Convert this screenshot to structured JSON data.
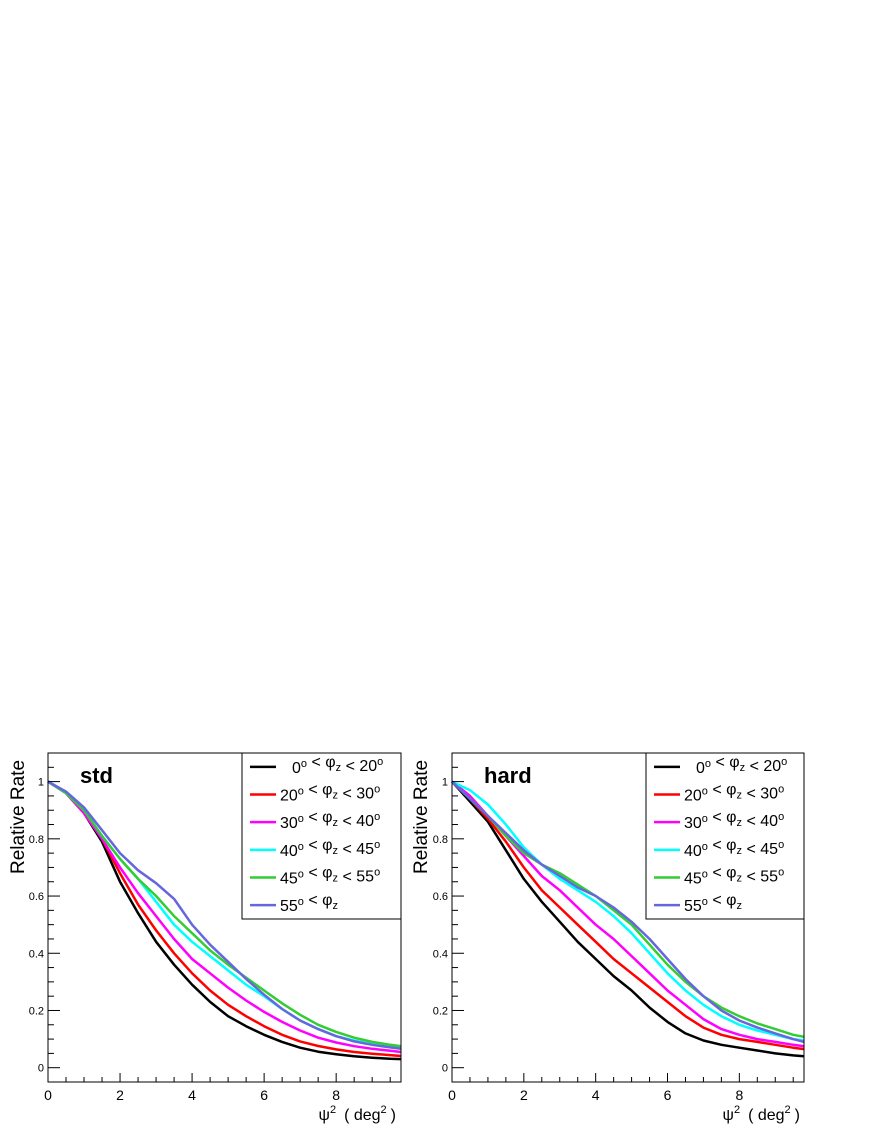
{
  "chart_data": [
    {
      "type": "line",
      "title": "std",
      "ylabel": "Relative Rate",
      "xlabel_base": "ψ",
      "xlabel_sup": "2",
      "xlabel_unit": "( deg",
      "xlabel_unit_sup": "2",
      "xlabel_close": ")",
      "xlim": [
        0,
        9.8
      ],
      "ylim": [
        -0.05,
        1.1
      ],
      "xticks": [
        0,
        2,
        4,
        6,
        8
      ],
      "yticks": [
        0,
        0.2,
        0.4,
        0.6,
        0.8,
        1
      ],
      "ytick_labels": [
        "0",
        "0.2",
        "0.4",
        "0.6",
        "0.8",
        "1"
      ],
      "grid": false,
      "legend_position": "top-right",
      "series": [
        {
          "name": "0° < φz < 20°",
          "color": "#000000",
          "x": [
            0,
            0.5,
            1,
            1.5,
            2,
            2.5,
            3,
            3.5,
            4,
            4.5,
            5,
            5.5,
            6,
            6.5,
            7,
            7.5,
            8,
            8.5,
            9,
            9.5,
            9.8
          ],
          "y": [
            1.0,
            0.96,
            0.89,
            0.79,
            0.65,
            0.54,
            0.44,
            0.36,
            0.29,
            0.23,
            0.18,
            0.145,
            0.115,
            0.09,
            0.07,
            0.056,
            0.047,
            0.04,
            0.035,
            0.031,
            0.03
          ]
        },
        {
          "name": "20° < φz < 30°",
          "color": "#ff0000",
          "x": [
            0,
            0.5,
            1,
            1.5,
            2,
            2.5,
            3,
            3.5,
            4,
            4.5,
            5,
            5.5,
            6,
            6.5,
            7,
            7.5,
            8,
            8.5,
            9,
            9.5,
            9.8
          ],
          "y": [
            1.0,
            0.96,
            0.89,
            0.8,
            0.68,
            0.57,
            0.48,
            0.4,
            0.33,
            0.27,
            0.22,
            0.18,
            0.145,
            0.115,
            0.092,
            0.076,
            0.064,
            0.055,
            0.049,
            0.044,
            0.041
          ]
        },
        {
          "name": "30° < φz < 40°",
          "color": "#ff00ff",
          "x": [
            0,
            0.5,
            1,
            1.5,
            2,
            2.5,
            3,
            3.5,
            4,
            4.5,
            5,
            5.5,
            6,
            6.5,
            7,
            7.5,
            8,
            8.5,
            9,
            9.5,
            9.8
          ],
          "y": [
            1.0,
            0.96,
            0.89,
            0.8,
            0.7,
            0.61,
            0.53,
            0.45,
            0.38,
            0.33,
            0.28,
            0.235,
            0.195,
            0.16,
            0.13,
            0.105,
            0.088,
            0.075,
            0.066,
            0.059,
            0.055
          ]
        },
        {
          "name": "40° < φz < 45°",
          "color": "#00ffff",
          "x": [
            0,
            0.5,
            1,
            1.5,
            2,
            2.5,
            3,
            3.5,
            4,
            4.5,
            5,
            5.5,
            6,
            6.5,
            7,
            7.5,
            8,
            8.5,
            9,
            9.5,
            9.8
          ],
          "y": [
            1.0,
            0.96,
            0.9,
            0.81,
            0.73,
            0.66,
            0.58,
            0.5,
            0.44,
            0.39,
            0.34,
            0.29,
            0.25,
            0.205,
            0.165,
            0.135,
            0.11,
            0.095,
            0.083,
            0.073,
            0.068
          ]
        },
        {
          "name": "45° < φz < 55°",
          "color": "#33cc33",
          "x": [
            0,
            0.5,
            1,
            1.5,
            2,
            2.5,
            3,
            3.5,
            4,
            4.5,
            5,
            5.5,
            6,
            6.5,
            7,
            7.5,
            8,
            8.5,
            9,
            9.5,
            9.8
          ],
          "y": [
            1.0,
            0.96,
            0.9,
            0.81,
            0.73,
            0.66,
            0.6,
            0.53,
            0.47,
            0.41,
            0.36,
            0.315,
            0.27,
            0.225,
            0.185,
            0.15,
            0.125,
            0.105,
            0.09,
            0.08,
            0.075
          ]
        },
        {
          "name": "55° < φz",
          "color": "#6666dd",
          "x": [
            0,
            0.5,
            1,
            1.5,
            2,
            2.5,
            3,
            3.5,
            4,
            4.5,
            5,
            5.5,
            6,
            6.5,
            7,
            7.5,
            8,
            8.5,
            9,
            9.5,
            9.8
          ],
          "y": [
            1.0,
            0.965,
            0.91,
            0.83,
            0.75,
            0.69,
            0.645,
            0.59,
            0.5,
            0.43,
            0.37,
            0.31,
            0.255,
            0.205,
            0.165,
            0.135,
            0.11,
            0.092,
            0.08,
            0.071,
            0.066
          ]
        }
      ]
    },
    {
      "type": "line",
      "title": "hard",
      "ylabel": "Relative Rate",
      "xlabel_base": "ψ",
      "xlabel_sup": "2",
      "xlabel_unit": "( deg",
      "xlabel_unit_sup": "2",
      "xlabel_close": ")",
      "xlim": [
        0,
        9.8
      ],
      "ylim": [
        -0.05,
        1.1
      ],
      "xticks": [
        0,
        2,
        4,
        6,
        8
      ],
      "yticks": [
        0,
        0.2,
        0.4,
        0.6,
        0.8,
        1
      ],
      "ytick_labels": [
        "0",
        "0.2",
        "0.4",
        "0.6",
        "0.8",
        "1"
      ],
      "grid": false,
      "legend_position": "top-right",
      "series": [
        {
          "name": "0° < φz < 20°",
          "color": "#000000",
          "x": [
            0,
            0.5,
            1,
            1.5,
            2,
            2.5,
            3,
            3.5,
            4,
            4.5,
            5,
            5.5,
            6,
            6.5,
            7,
            7.5,
            8,
            8.5,
            9,
            9.5,
            9.8
          ],
          "y": [
            1.0,
            0.93,
            0.86,
            0.76,
            0.66,
            0.58,
            0.51,
            0.44,
            0.38,
            0.32,
            0.27,
            0.21,
            0.16,
            0.12,
            0.095,
            0.08,
            0.07,
            0.06,
            0.05,
            0.043,
            0.04
          ]
        },
        {
          "name": "20° < φz < 30°",
          "color": "#ff0000",
          "x": [
            0,
            0.5,
            1,
            1.5,
            2,
            2.5,
            3,
            3.5,
            4,
            4.5,
            5,
            5.5,
            6,
            6.5,
            7,
            7.5,
            8,
            8.5,
            9,
            9.5,
            9.8
          ],
          "y": [
            1.0,
            0.94,
            0.87,
            0.79,
            0.7,
            0.62,
            0.56,
            0.5,
            0.44,
            0.38,
            0.33,
            0.28,
            0.23,
            0.18,
            0.14,
            0.115,
            0.1,
            0.09,
            0.08,
            0.07,
            0.065
          ]
        },
        {
          "name": "30° < φz < 40°",
          "color": "#ff00ff",
          "x": [
            0,
            0.5,
            1,
            1.5,
            2,
            2.5,
            3,
            3.5,
            4,
            4.5,
            5,
            5.5,
            6,
            6.5,
            7,
            7.5,
            8,
            8.5,
            9,
            9.5,
            9.8
          ],
          "y": [
            1.0,
            0.95,
            0.88,
            0.81,
            0.74,
            0.67,
            0.62,
            0.56,
            0.5,
            0.45,
            0.39,
            0.33,
            0.27,
            0.22,
            0.17,
            0.135,
            0.115,
            0.1,
            0.09,
            0.08,
            0.075
          ]
        },
        {
          "name": "40° < φz < 45°",
          "color": "#00ffff",
          "x": [
            0,
            0.5,
            1,
            1.5,
            2,
            2.5,
            3,
            3.5,
            4,
            4.5,
            5,
            5.5,
            6,
            6.5,
            7,
            7.5,
            8,
            8.5,
            9,
            9.5,
            9.8
          ],
          "y": [
            1.0,
            0.97,
            0.92,
            0.85,
            0.77,
            0.71,
            0.66,
            0.62,
            0.58,
            0.53,
            0.47,
            0.4,
            0.33,
            0.27,
            0.22,
            0.18,
            0.15,
            0.13,
            0.115,
            0.1,
            0.095
          ]
        },
        {
          "name": "45° < φz < 55°",
          "color": "#33cc33",
          "x": [
            0,
            0.5,
            1,
            1.5,
            2,
            2.5,
            3,
            3.5,
            4,
            4.5,
            5,
            5.5,
            6,
            6.5,
            7,
            7.5,
            8,
            8.5,
            9,
            9.5,
            9.8
          ],
          "y": [
            1.0,
            0.94,
            0.88,
            0.81,
            0.75,
            0.71,
            0.68,
            0.64,
            0.6,
            0.55,
            0.5,
            0.43,
            0.36,
            0.3,
            0.25,
            0.21,
            0.18,
            0.155,
            0.135,
            0.115,
            0.108
          ]
        },
        {
          "name": "55° < φz",
          "color": "#6666dd",
          "x": [
            0,
            0.5,
            1,
            1.5,
            2,
            2.5,
            3,
            3.5,
            4,
            4.5,
            5,
            5.5,
            6,
            6.5,
            7,
            7.5,
            8,
            8.5,
            9,
            9.5,
            9.8
          ],
          "y": [
            1.0,
            0.94,
            0.88,
            0.82,
            0.76,
            0.71,
            0.67,
            0.63,
            0.6,
            0.56,
            0.51,
            0.45,
            0.38,
            0.31,
            0.25,
            0.2,
            0.165,
            0.14,
            0.12,
            0.1,
            0.09
          ]
        }
      ]
    }
  ]
}
